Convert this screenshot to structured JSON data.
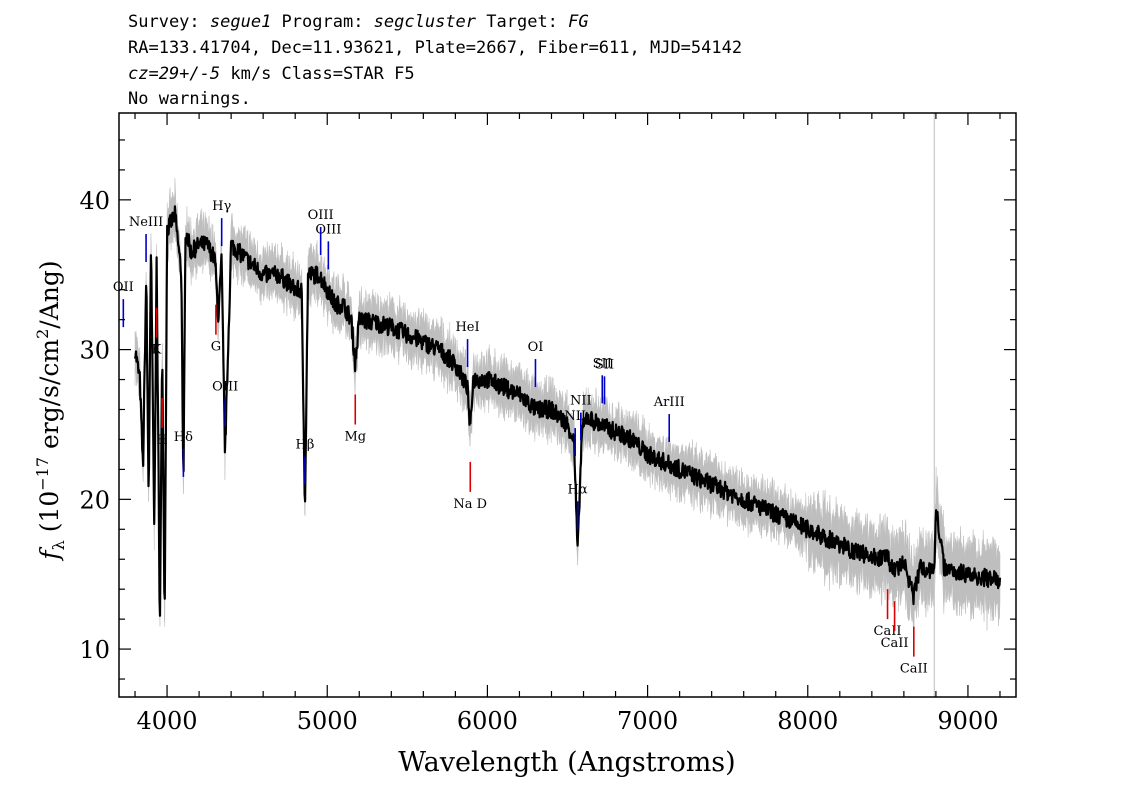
{
  "header": {
    "line1": {
      "survey_label": "Survey: ",
      "survey": "segue1",
      "program_label": " Program: ",
      "program": "segcluster",
      "target_label": " Target: ",
      "target": "FG"
    },
    "line2": "RA=133.41704, Dec=11.93621, Plate=2667, Fiber=611, MJD=54142",
    "line3": {
      "cz": "cz=29+/-5",
      "rest": " km/s Class=STAR F5"
    },
    "line4": "No warnings."
  },
  "colors": {
    "flux": "#000000",
    "error": "#bebebe",
    "emission": "#0000cc",
    "absorption": "#dd0000",
    "marker": "#c8c8c8"
  },
  "chart_data": {
    "type": "line",
    "xlabel": "Wavelength (Angstroms)",
    "ylabel": "f_λ (10^-17 erg/s/cm^2/Ang)",
    "xlim": [
      3700,
      9300
    ],
    "ylim": [
      6.8,
      45.8
    ],
    "xticks": [
      4000,
      5000,
      6000,
      7000,
      8000,
      9000
    ],
    "yticks": [
      10,
      20,
      30,
      40
    ],
    "series": [
      {
        "x": [
          3800,
          3830,
          3850,
          3870,
          3885,
          3900,
          3920,
          3935,
          3955,
          3970,
          3985,
          4000,
          4050,
          4090,
          4102,
          4115,
          4150,
          4200,
          4250,
          4300,
          4320,
          4340,
          4362,
          4400,
          4450,
          4500,
          4600,
          4700,
          4800,
          4840,
          4861,
          4880,
          4950,
          5000,
          5050,
          5100,
          5150,
          5175,
          5200,
          5300,
          5400,
          5500,
          5600,
          5700,
          5800,
          5850,
          5875,
          5893,
          5910,
          6000,
          6100,
          6200,
          6300,
          6400,
          6500,
          6540,
          6563,
          6590,
          6620,
          6700,
          6800,
          6900,
          7000,
          7100,
          7200,
          7300,
          7400,
          7500,
          7600,
          7700,
          7800,
          7900,
          8000,
          8100,
          8200,
          8300,
          8400,
          8500,
          8542,
          8600,
          8662,
          8700,
          8760,
          8790,
          8800,
          8850,
          8900,
          9000,
          9100,
          9200
        ],
        "y": [
          30,
          28,
          22,
          35,
          20,
          37,
          18,
          36,
          11.5,
          30,
          12,
          38,
          39,
          35,
          20,
          38,
          36.5,
          37,
          37,
          36,
          32,
          36,
          23,
          37,
          36.5,
          36,
          35,
          35,
          34,
          34,
          19.5,
          35,
          35,
          34,
          33,
          33,
          32,
          29,
          32,
          31.8,
          31.5,
          31,
          30.5,
          30,
          29,
          28,
          27.5,
          24.5,
          28,
          28,
          27.5,
          27,
          26,
          26,
          25,
          24,
          16.5,
          24.5,
          25.5,
          25,
          24.5,
          24,
          23,
          22.5,
          22,
          21.5,
          21,
          20.5,
          20,
          19.5,
          19,
          18.5,
          18,
          17.5,
          17,
          16.5,
          16.2,
          16,
          15.2,
          15.8,
          13.5,
          15.5,
          15.2,
          15.3,
          19.5,
          15.5,
          15.3,
          15,
          14.8,
          14.5
        ]
      }
    ],
    "lines": [
      {
        "label": "NeIII",
        "wavelength": 3869,
        "kind": "emission"
      },
      {
        "label": "Hδ",
        "wavelength": 4102,
        "kind": "emission"
      },
      {
        "label": "Hγ",
        "wavelength": 4341,
        "kind": "emission"
      },
      {
        "label": "OIII",
        "wavelength": 4363,
        "kind": "emission"
      },
      {
        "label": "Hβ",
        "wavelength": 4861,
        "kind": "emission"
      },
      {
        "label": "OIII",
        "wavelength": 4959,
        "kind": "emission"
      },
      {
        "label": "OIII",
        "wavelength": 5007,
        "kind": "emission"
      },
      {
        "label": "HeI",
        "wavelength": 5876,
        "kind": "emission"
      },
      {
        "label": "OI",
        "wavelength": 6300,
        "kind": "emission"
      },
      {
        "label": "NII",
        "wavelength": 6548,
        "kind": "emission"
      },
      {
        "label": "Hα",
        "wavelength": 6563,
        "kind": "emission"
      },
      {
        "label": "NII",
        "wavelength": 6583,
        "kind": "emission"
      },
      {
        "label": "SII",
        "wavelength": 6717,
        "kind": "emission"
      },
      {
        "label": "SII",
        "wavelength": 6731,
        "kind": "emission"
      },
      {
        "label": "ArIII",
        "wavelength": 7135,
        "kind": "emission"
      },
      {
        "label": "OII",
        "wavelength": 3727,
        "kind": "emission"
      },
      {
        "label": "K",
        "wavelength": 3934,
        "kind": "absorption"
      },
      {
        "label": "H",
        "wavelength": 3969,
        "kind": "absorption"
      },
      {
        "label": "G",
        "wavelength": 4305,
        "kind": "absorption"
      },
      {
        "label": "Mg",
        "wavelength": 5175,
        "kind": "absorption"
      },
      {
        "label": "Na D",
        "wavelength": 5893,
        "kind": "absorption"
      },
      {
        "label": "CaII",
        "wavelength": 8498,
        "kind": "absorption"
      },
      {
        "label": "CaII",
        "wavelength": 8542,
        "kind": "absorption"
      },
      {
        "label": "CaII",
        "wavelength": 8662,
        "kind": "absorption"
      }
    ]
  }
}
